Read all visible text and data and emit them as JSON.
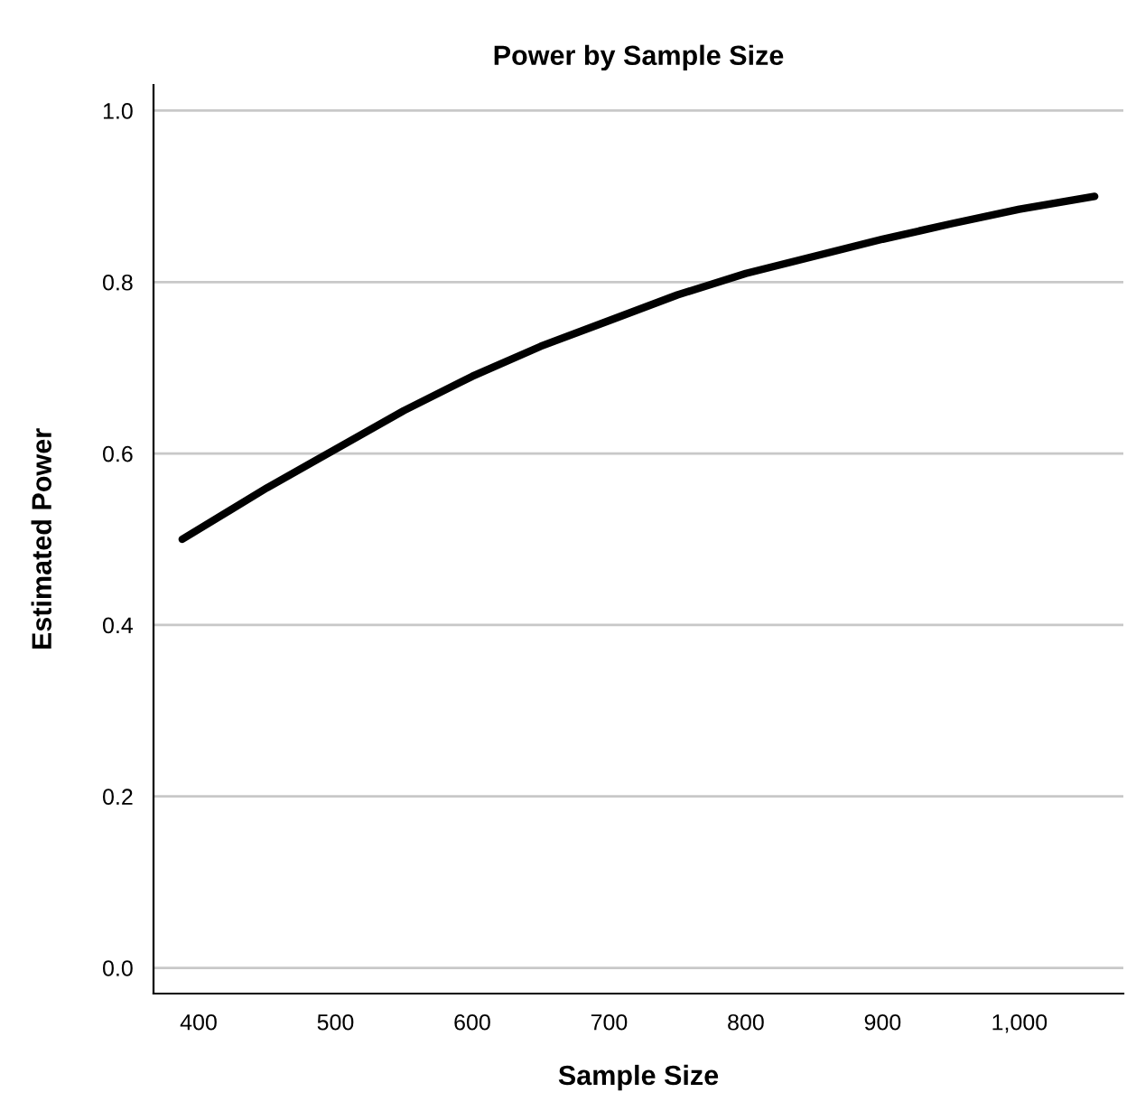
{
  "chart_data": {
    "type": "line",
    "title": "Power by Sample Size",
    "xlabel": "Sample Size",
    "ylabel": "Estimated Power",
    "x": [
      388,
      450,
      500,
      550,
      600,
      650,
      700,
      750,
      800,
      850,
      900,
      950,
      1000,
      1055
    ],
    "series": [
      {
        "color": "#000000",
        "values": [
          0.5,
          0.56,
          0.605,
          0.65,
          0.69,
          0.725,
          0.755,
          0.785,
          0.81,
          0.83,
          0.85,
          0.868,
          0.885,
          0.9
        ]
      }
    ],
    "xlim": [
      367,
      1076
    ],
    "xticks": [
      400,
      500,
      600,
      700,
      800,
      900,
      {
        "value": 1000,
        "label": "1,000"
      }
    ],
    "ylim": [
      -0.03,
      1.03
    ],
    "yticks": [
      {
        "value": 0,
        "label": "0.0"
      },
      0.2,
      0.4,
      0.6,
      0.8,
      {
        "value": 1,
        "label": "1.0"
      }
    ],
    "grid": "y",
    "line_style": "solid"
  }
}
